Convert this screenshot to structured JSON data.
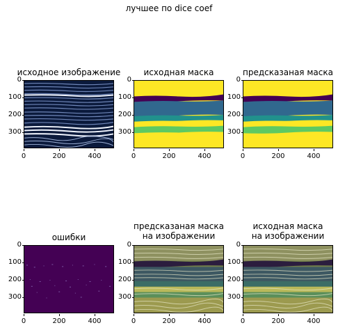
{
  "suptitle": "лучшее по dice coef",
  "panels": [
    {
      "title": "исходное изображение",
      "kind": "seismic"
    },
    {
      "title": "исходная маска",
      "kind": "mask"
    },
    {
      "title": "предсказаная маска",
      "kind": "mask"
    },
    {
      "title": "ошибки",
      "kind": "errors"
    },
    {
      "title": "предсказаная маска\nна изображении",
      "kind": "overlay"
    },
    {
      "title": "исходная маска\nна изображении",
      "kind": "overlay"
    }
  ],
  "yticks": [
    "0",
    "100",
    "200",
    "300"
  ],
  "xticks": [
    "0",
    "200",
    "400"
  ],
  "colors": {
    "viridis_dark": "#440154",
    "viridis_teal": "#21918c",
    "viridis_blue": "#31688e",
    "viridis_green": "#5ec962",
    "viridis_yellow": "#fde725",
    "seismic_dark": "#0b1a3c",
    "seismic_light": "#e8f0ff"
  }
}
